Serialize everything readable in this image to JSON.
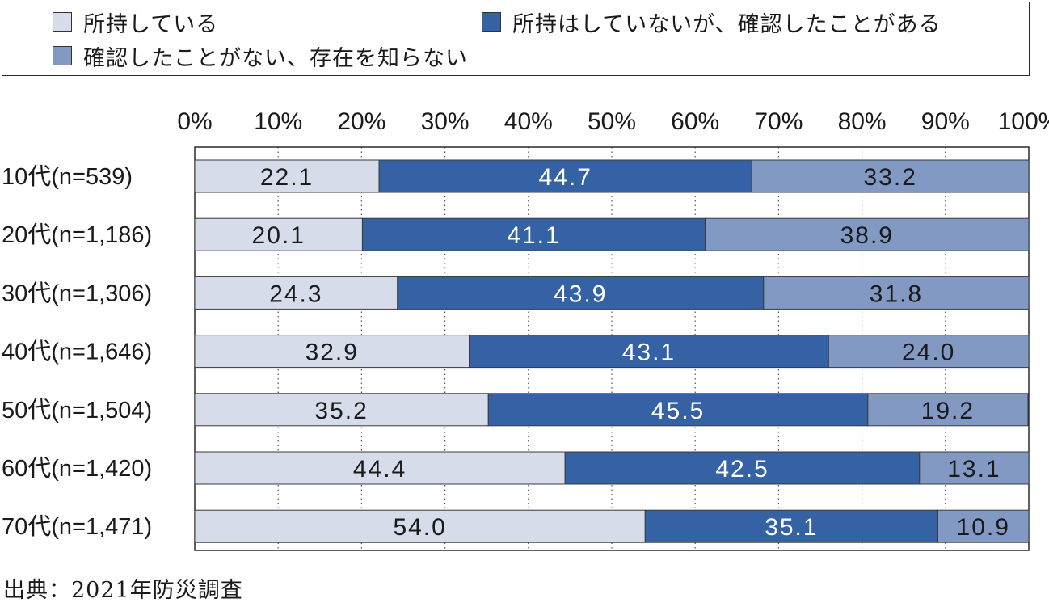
{
  "chart_data": {
    "type": "bar",
    "orientation": "horizontal",
    "stacked": true,
    "percent": true,
    "categories": [
      "10代(n=539)",
      "20代(n=1,186)",
      "30代(n=1,306)",
      "40代(n=1,646)",
      "50代(n=1,504)",
      "60代(n=1,420)",
      "70代(n=1,471)"
    ],
    "series": [
      {
        "name": "所持している",
        "color": "#d7dcea",
        "label_color": "#1a1a1a",
        "values": [
          22.1,
          20.1,
          24.3,
          32.9,
          35.2,
          44.4,
          54.0
        ],
        "labels": [
          "22.1",
          "20.1",
          "24.3",
          "32.9",
          "35.2",
          "44.4",
          "54.0"
        ]
      },
      {
        "name": "所持はしていないが、確認したことがある",
        "color": "#3562a5",
        "label_color": "#ffffff",
        "values": [
          44.7,
          41.1,
          43.9,
          43.1,
          45.5,
          42.5,
          35.1
        ],
        "labels": [
          "44.7",
          "41.1",
          "43.9",
          "43.1",
          "45.5",
          "42.5",
          "35.1"
        ]
      },
      {
        "name": "確認したことがない、存在を知らない",
        "color": "#8299c4",
        "label_color": "#1a1a1a",
        "values": [
          33.2,
          38.9,
          31.8,
          24.0,
          19.2,
          13.1,
          10.9
        ],
        "labels": [
          "33.2",
          "38.9",
          "31.8",
          "24.0",
          "19.2",
          "13.1",
          "10.9"
        ]
      }
    ],
    "x_ticks": [
      0,
      10,
      20,
      30,
      40,
      50,
      60,
      70,
      80,
      90,
      100
    ],
    "x_tick_labels": [
      "0%",
      "10%",
      "20%",
      "30%",
      "40%",
      "50%",
      "60%",
      "70%",
      "80%",
      "90%",
      "100%"
    ],
    "xlim": [
      0,
      100
    ],
    "grid": "dotted-vertical",
    "legend_position": "top"
  },
  "source": "出典：2021年防災調査"
}
